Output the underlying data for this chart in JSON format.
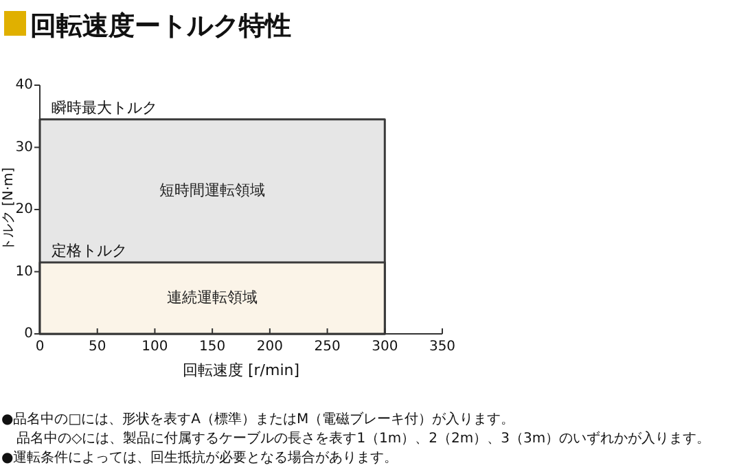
{
  "chart_data": {
    "type": "area",
    "title": "回転速度ートルク特性",
    "xlabel": "回転速度 [r/min]",
    "ylabel": "トルク [N·m]",
    "x": [
      0,
      300
    ],
    "series": [
      {
        "name": "短時間運転領域",
        "color": "#e6e6e6",
        "values": [
          34.5,
          34.5
        ]
      },
      {
        "name": "連続運転領域",
        "color": "#fbf4e8",
        "values": [
          11.5,
          11.5
        ]
      }
    ],
    "xlim": [
      0,
      350
    ],
    "xticks": [
      0,
      50,
      100,
      150,
      200,
      250,
      300,
      350
    ],
    "ylim": [
      0,
      40
    ],
    "yticks": [
      0,
      10,
      20,
      30,
      40
    ],
    "annotations": [
      {
        "text": "瞬時最大トルク",
        "x": 10,
        "y": 34.5
      },
      {
        "text": "定格トルク",
        "x": 10,
        "y": 11.5
      },
      "●品名中の□には、形状を表すA（標準）またはM（電磁ブレーキ付）が入ります。",
      "品名中の◇には、製品に付属するケーブルの長さを表す1（1m）、2（2m）、3（3m）のいずれかが入ります。",
      "●運転条件によっては、回生抵抗が必要となる場合があります。"
    ]
  }
}
